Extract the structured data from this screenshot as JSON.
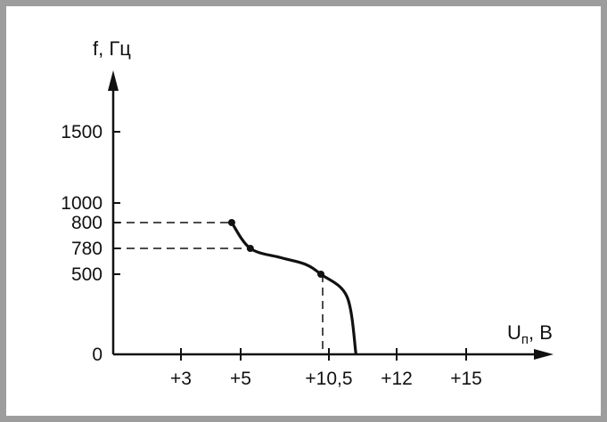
{
  "chart_data": {
    "type": "line",
    "ylabel": "f, Гц",
    "xlabel_main": "U",
    "xlabel_sub": "п",
    "xlabel_unit": ", В",
    "x_ticks": [
      {
        "value": 3,
        "label": "+3"
      },
      {
        "value": 5,
        "label": "+5"
      },
      {
        "value": 10.5,
        "label": "+10,5"
      },
      {
        "value": 12,
        "label": "+12"
      },
      {
        "value": 15,
        "label": "+15"
      }
    ],
    "y_ticks": [
      {
        "value": 0,
        "label": "0"
      },
      {
        "value": 500,
        "label": "500"
      },
      {
        "value": 780,
        "label": "780"
      },
      {
        "value": 800,
        "label": "800"
      },
      {
        "value": 1000,
        "label": "1000"
      },
      {
        "value": 1500,
        "label": "1500"
      }
    ],
    "series": [
      {
        "points": [
          {
            "x": 4.7,
            "y": 800
          },
          {
            "x": 5.6,
            "y": 780
          },
          {
            "x": 7.5,
            "y": 680
          },
          {
            "x": 9.0,
            "y": 610
          },
          {
            "x": 10.0,
            "y": 500
          },
          {
            "x": 10.9,
            "y": 360
          },
          {
            "x": 11.1,
            "y": 0
          }
        ],
        "markers": [
          {
            "x": 4.7,
            "y": 800
          },
          {
            "x": 5.6,
            "y": 780
          },
          {
            "x": 10.0,
            "y": 500
          }
        ]
      }
    ],
    "dashed_guides": [
      {
        "x": 4.7,
        "y": 800
      },
      {
        "x": 5.6,
        "y": 780
      },
      {
        "x": 10.0,
        "y": 500
      }
    ],
    "colors": {
      "frame": "#9d9d9d",
      "ink": "#111111"
    }
  }
}
